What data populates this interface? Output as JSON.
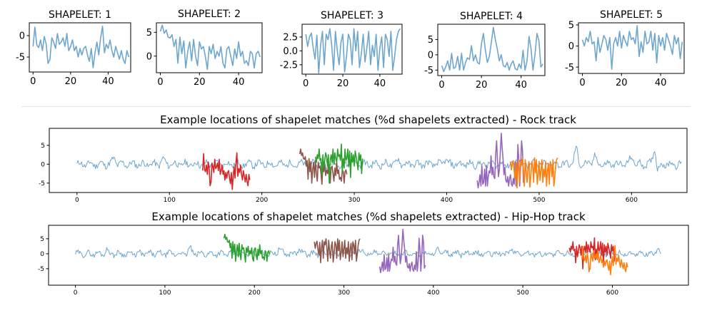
{
  "chart_data": [
    {
      "type": "line",
      "title": "SHAPELET: 1",
      "xlim": [
        -2,
        52
      ],
      "ylim": [
        -8.5,
        3.0
      ],
      "xticks": [
        0,
        20,
        40
      ],
      "yticks": [
        0,
        -5
      ],
      "series": [
        {
          "color": "#1f77b4",
          "values": [
            -2.5,
            2.0,
            -2.2,
            -2.8,
            -1.0,
            -3.5,
            -0.2,
            -2.0,
            -6.5,
            -5.5,
            -0.5,
            -1.5,
            -3.0,
            0.5,
            -2.0,
            -1.5,
            -0.5,
            -2.5,
            0.5,
            -3.5,
            -2.5,
            -1.0,
            -3.5,
            -2.5,
            -5.0,
            -3.0,
            -4.5,
            -3.0,
            -2.5,
            -4.5,
            -6.0,
            -3.0,
            -7.5,
            -4.0,
            -1.5,
            -4.5,
            -0.5,
            2.2,
            -4.0,
            -2.0,
            -3.0,
            -1.0,
            -3.5,
            -5.0,
            -2.5,
            -4.0,
            -5.5,
            -3.5,
            -5.5,
            -6.5,
            -3.5,
            -5.0
          ]
        }
      ]
    },
    {
      "type": "line",
      "title": "SHAPELET: 2",
      "xlim": [
        -2,
        52
      ],
      "ylim": [
        -3.5,
        7.0
      ],
      "xticks": [
        0,
        20,
        40
      ],
      "yticks": [
        5,
        0
      ],
      "series": [
        {
          "color": "#1f77b4",
          "values": [
            5.2,
            6.5,
            4.8,
            5.5,
            4.0,
            3.8,
            4.5,
            2.0,
            3.5,
            -1.5,
            4.0,
            0.5,
            3.2,
            -2.5,
            1.0,
            3.0,
            -1.0,
            3.5,
            0.0,
            -2.0,
            3.0,
            1.5,
            2.0,
            0.0,
            -2.8,
            2.0,
            0.5,
            2.5,
            -0.5,
            1.0,
            0.0,
            2.0,
            -1.5,
            -2.5,
            1.5,
            2.0,
            0.0,
            -2.0,
            1.5,
            -0.5,
            3.0,
            0.0,
            1.0,
            -1.5,
            -1.0,
            -2.0,
            1.0,
            0.5,
            -2.5,
            0.5,
            1.0,
            -0.2
          ]
        }
      ]
    },
    {
      "type": "line",
      "title": "SHAPELET: 3",
      "xlim": [
        -2,
        52
      ],
      "ylim": [
        -4.2,
        4.8
      ],
      "xticks": [
        0,
        20,
        40
      ],
      "yticks": [
        2.5,
        0.0,
        -2.5
      ],
      "series": [
        {
          "color": "#1f77b4",
          "values": [
            3.0,
            0.8,
            2.5,
            3.2,
            0.5,
            -1.5,
            2.8,
            -4.0,
            1.0,
            3.5,
            -2.5,
            3.0,
            2.0,
            4.0,
            1.0,
            -3.5,
            3.5,
            0.0,
            -2.5,
            1.5,
            3.0,
            -3.8,
            -1.0,
            3.0,
            2.0,
            -2.5,
            4.0,
            0.0,
            3.5,
            -3.0,
            -0.5,
            3.0,
            -2.0,
            0.5,
            3.5,
            -2.5,
            1.0,
            -1.0,
            3.0,
            -3.5,
            0.5,
            2.5,
            -3.0,
            3.0,
            2.0,
            -1.0,
            3.5,
            -3.5,
            -1.0,
            2.0,
            3.5,
            4.0
          ]
        }
      ]
    },
    {
      "type": "line",
      "title": "SHAPELET: 4",
      "xlim": [
        -2,
        52
      ],
      "ylim": [
        -6.8,
        10.0
      ],
      "xticks": [
        0,
        20,
        40
      ],
      "yticks": [
        5,
        0,
        -5
      ],
      "series": [
        {
          "color": "#1f77b4",
          "values": [
            -3.5,
            -5.5,
            -4.0,
            -2.0,
            -5.0,
            0.5,
            -4.5,
            -4.0,
            -0.5,
            -5.0,
            0.5,
            -5.0,
            -2.5,
            -1.0,
            -1.5,
            3.0,
            -2.0,
            0.0,
            -2.5,
            -3.0,
            3.5,
            7.0,
            1.5,
            -2.5,
            -0.5,
            4.0,
            9.0,
            5.0,
            2.0,
            -2.0,
            0.0,
            -3.5,
            -4.0,
            -2.5,
            -5.0,
            -3.0,
            -2.0,
            -4.5,
            -5.0,
            -3.0,
            -4.5,
            1.5,
            -5.0,
            -2.0,
            6.0,
            2.0,
            -5.0,
            0.0,
            7.0,
            4.5,
            -4.0,
            -3.0
          ]
        }
      ]
    },
    {
      "type": "line",
      "title": "SHAPELET: 5",
      "xlim": [
        -2,
        52
      ],
      "ylim": [
        -6.5,
        5.5
      ],
      "xticks": [
        0,
        20,
        40
      ],
      "yticks": [
        5,
        0,
        -5
      ],
      "series": [
        {
          "color": "#1f77b4",
          "values": [
            1.5,
            0.0,
            2.0,
            1.0,
            3.5,
            0.5,
            1.0,
            -3.5,
            2.0,
            -1.5,
            0.5,
            2.5,
            1.5,
            -1.0,
            2.0,
            -5.5,
            0.5,
            2.0,
            0.0,
            3.5,
            -0.5,
            2.5,
            1.0,
            0.0,
            3.5,
            1.5,
            2.0,
            0.5,
            4.8,
            -2.5,
            1.0,
            -1.5,
            3.5,
            0.5,
            1.0,
            3.5,
            -1.0,
            3.0,
            -4.0,
            2.5,
            0.0,
            2.0,
            -1.0,
            3.0,
            1.5,
            0.0,
            -2.0,
            2.5,
            0.5,
            2.0,
            -3.0,
            1.0
          ]
        }
      ]
    },
    {
      "type": "line",
      "title": "Example locations of shapelet matches (%d shapelets extracted) - Rock track",
      "xlim": [
        -30,
        660
      ],
      "ylim": [
        -7.5,
        9.5
      ],
      "xticks": [
        0,
        100,
        200,
        300,
        400,
        500,
        600
      ],
      "yticks": [
        5,
        0,
        -5
      ],
      "series": [
        {
          "color": "#1f77b4",
          "kind": "base",
          "n": 655,
          "seed": 11,
          "amp": 1.0,
          "bumps": [
            [
              40,
              1.5
            ],
            [
              93,
              1.3
            ],
            [
              297,
              1.5
            ],
            [
              348,
              1.2
            ],
            [
              398,
              1.3
            ],
            [
              477,
              2.0
            ],
            [
              540,
              4.0
            ],
            [
              560,
              2.2
            ],
            [
              600,
              2.0
            ],
            [
              625,
              4.5
            ],
            [
              628,
              -2.0
            ]
          ]
        },
        {
          "color": "#d62728",
          "kind": "segment",
          "start": 136,
          "len": 52,
          "shapelet": 1,
          "offset": 0.8
        },
        {
          "color": "#8c564b",
          "kind": "segment",
          "start": 241,
          "len": 52,
          "shapelet": 2,
          "offset": -2.5
        },
        {
          "color": "#2ca02c",
          "kind": "segment",
          "start": 258,
          "len": 52,
          "shapelet": 5,
          "offset": 0.5
        },
        {
          "color": "#9467bd",
          "kind": "segment",
          "start": 433,
          "len": 52,
          "shapelet": 4,
          "offset": -0.8
        },
        {
          "color": "#ff7f0e",
          "kind": "segment",
          "start": 469,
          "len": 52,
          "shapelet": 3,
          "offset": -2.3
        }
      ]
    },
    {
      "type": "line",
      "title": "Example locations of shapelet matches (%d shapelets extracted) - Hip-Hop track",
      "xlim": [
        -30,
        685
      ],
      "ylim": [
        -10.5,
        9.5
      ],
      "xticks": [
        0,
        100,
        200,
        300,
        400,
        500,
        600
      ],
      "yticks": [
        5,
        0,
        -5
      ],
      "series": [
        {
          "color": "#1f77b4",
          "kind": "base",
          "n": 655,
          "seed": 29,
          "amp": 1.0,
          "bumps": [
            [
              35,
              1.2
            ],
            [
              128,
              1.8
            ],
            [
              228,
              2.0
            ],
            [
              250,
              1.5
            ],
            [
              318,
              1.8
            ],
            [
              405,
              1.5
            ],
            [
              488,
              1.8
            ],
            [
              650,
              1.5
            ]
          ]
        },
        {
          "color": "#2ca02c",
          "kind": "segment",
          "start": 166,
          "len": 52,
          "shapelet": 2,
          "offset": 0.0
        },
        {
          "color": "#8c564b",
          "kind": "segment",
          "start": 267,
          "len": 52,
          "shapelet": 3,
          "offset": 1.0
        },
        {
          "color": "#9467bd",
          "kind": "segment",
          "start": 340,
          "len": 52,
          "shapelet": 4,
          "offset": -0.8
        },
        {
          "color": "#d62728",
          "kind": "segment",
          "start": 552,
          "len": 52,
          "shapelet": 5,
          "offset": 0.5
        },
        {
          "color": "#ff7f0e",
          "kind": "segment",
          "start": 566,
          "len": 52,
          "shapelet": 1,
          "offset": 0.5
        }
      ]
    }
  ]
}
